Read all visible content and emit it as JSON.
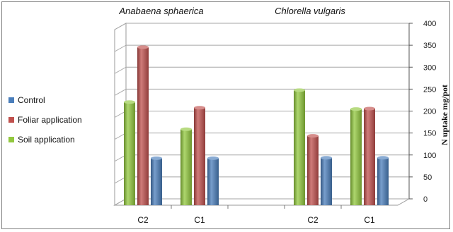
{
  "chart_data": {
    "type": "bar",
    "title": "",
    "xlabel": "",
    "ylabel": "N uptake mg/pot",
    "ylim": [
      0,
      400
    ],
    "y_ticks": [
      0,
      50,
      100,
      150,
      200,
      250,
      300,
      350,
      400
    ],
    "y_axis_position": "right",
    "grid": true,
    "legend_position": "left",
    "three_d": true,
    "groups": [
      "Anabaena sphaerica",
      "Chlorella vulgaris"
    ],
    "categories": [
      "C2",
      "C1",
      "",
      "C2",
      "C1"
    ],
    "series": [
      {
        "name": "Soil application",
        "color": "#92c83e",
        "values": [
          235,
          173,
          null,
          262,
          219
        ]
      },
      {
        "name": "Foliar application",
        "color": "#c0504d",
        "values": [
          360,
          222,
          null,
          158,
          220
        ]
      },
      {
        "name": "Control",
        "color": "#4a7ebb",
        "values": [
          107,
          107,
          null,
          108,
          108
        ]
      }
    ]
  },
  "legend": {
    "items": [
      {
        "label": "Control",
        "color": "#4a7ebb"
      },
      {
        "label": "Foliar application",
        "color": "#c0504d"
      },
      {
        "label": "Soil application",
        "color": "#92c83e"
      }
    ]
  }
}
